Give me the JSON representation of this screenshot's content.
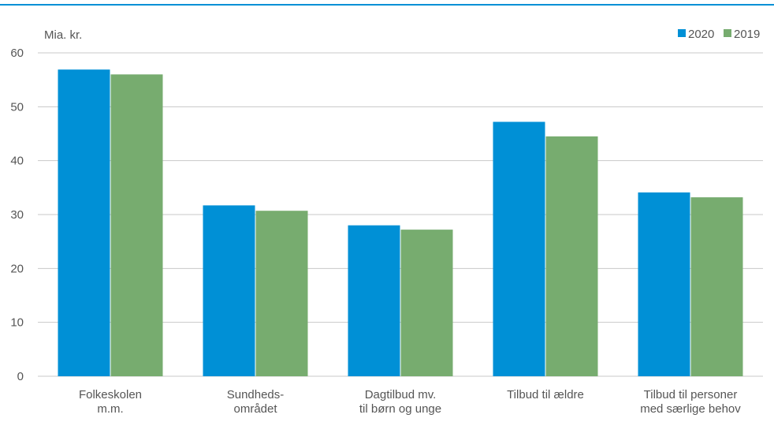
{
  "chart_data": {
    "type": "bar",
    "unit_label": "Mia. kr.",
    "categories": [
      [
        "Folkeskolen",
        "m.m."
      ],
      [
        "Sundheds-",
        "området"
      ],
      [
        "Dagtilbud mv.",
        "til børn og unge"
      ],
      [
        "Tilbud til ældre"
      ],
      [
        "Tilbud til personer",
        "med særlige behov"
      ]
    ],
    "series": [
      {
        "name": "2020",
        "color": "#0090d6",
        "values": [
          56.9,
          31.7,
          28.0,
          47.2,
          34.1
        ]
      },
      {
        "name": "2019",
        "color": "#77ac6f",
        "values": [
          56.0,
          30.7,
          27.2,
          44.5,
          33.2
        ]
      }
    ],
    "ylim": [
      0,
      60
    ],
    "yticks": [
      0,
      10,
      20,
      30,
      40,
      50,
      60
    ],
    "grid": true,
    "legend_position": "top-right",
    "title": "",
    "xlabel": "",
    "ylabel": ""
  },
  "colors": {
    "top_rule": "#0090d6",
    "gridline": "#c8c8c8",
    "text": "#555555"
  }
}
